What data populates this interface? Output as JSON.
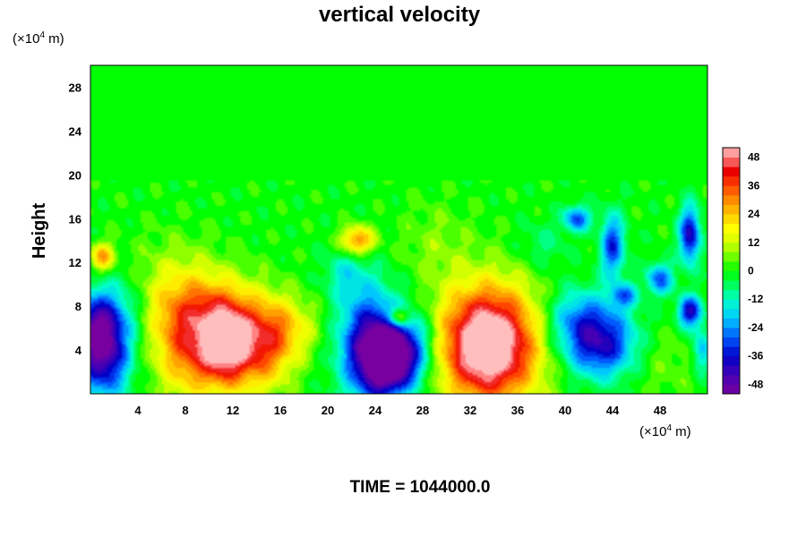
{
  "chart_data": {
    "type": "heatmap",
    "title": "vertical velocity",
    "ylabel": "Height",
    "x_unit": "(×10",
    "x_unit_exp": "4",
    "x_unit_suffix": " m)",
    "y_unit": "(×10",
    "y_unit_exp": "4",
    "y_unit_suffix": " m)",
    "xlim": [
      0,
      52
    ],
    "ylim": [
      0,
      30
    ],
    "x_ticks": [
      4,
      8,
      12,
      16,
      20,
      24,
      28,
      32,
      36,
      40,
      44,
      48
    ],
    "y_ticks": [
      4,
      8,
      12,
      16,
      20,
      24,
      28
    ],
    "colorbar": {
      "range": [
        -52,
        52
      ],
      "ticks": [
        48,
        36,
        24,
        12,
        0,
        -12,
        -24,
        -36,
        -48
      ]
    },
    "field_blobs": [
      {
        "x": 1.0,
        "y": 4.0,
        "sx": 1.6,
        "sy": 3.0,
        "v": -48
      },
      {
        "x": 0.5,
        "y": 6.5,
        "sx": 1.2,
        "sy": 2.0,
        "v": -20
      },
      {
        "x": 1.0,
        "y": 12.5,
        "sx": 0.7,
        "sy": 0.9,
        "v": 28
      },
      {
        "x": 3.0,
        "y": 8.0,
        "sx": 1.5,
        "sy": 2.5,
        "v": -10
      },
      {
        "x": 8.5,
        "y": 4.0,
        "sx": 2.2,
        "sy": 3.2,
        "v": 30
      },
      {
        "x": 11.5,
        "y": 4.5,
        "sx": 1.5,
        "sy": 2.6,
        "v": 40
      },
      {
        "x": 10.0,
        "y": 7.5,
        "sx": 3.5,
        "sy": 2.5,
        "v": 18
      },
      {
        "x": 14.5,
        "y": 4.0,
        "sx": 1.8,
        "sy": 2.8,
        "v": 28
      },
      {
        "x": 16.5,
        "y": 6.0,
        "sx": 2.0,
        "sy": 2.0,
        "v": 15
      },
      {
        "x": 7.0,
        "y": 10.0,
        "sx": 3.0,
        "sy": 3.0,
        "v": 10
      },
      {
        "x": 22.5,
        "y": 14.0,
        "sx": 1.0,
        "sy": 0.9,
        "v": 32
      },
      {
        "x": 21.5,
        "y": 11.0,
        "sx": 1.3,
        "sy": 1.6,
        "v": -12
      },
      {
        "x": 23.5,
        "y": 4.5,
        "sx": 1.8,
        "sy": 3.5,
        "v": -42
      },
      {
        "x": 25.0,
        "y": 3.0,
        "sx": 1.4,
        "sy": 2.0,
        "v": -48
      },
      {
        "x": 27.0,
        "y": 4.0,
        "sx": 1.6,
        "sy": 2.5,
        "v": -30
      },
      {
        "x": 26.0,
        "y": 7.0,
        "sx": 0.6,
        "sy": 0.6,
        "v": 30
      },
      {
        "x": 33.5,
        "y": 4.5,
        "sx": 2.6,
        "sy": 3.4,
        "v": 46
      },
      {
        "x": 33.5,
        "y": 4.5,
        "sx": 4.0,
        "sy": 4.5,
        "v": 20
      },
      {
        "x": 43.0,
        "y": 4.5,
        "sx": 2.2,
        "sy": 2.2,
        "v": -38
      },
      {
        "x": 41.0,
        "y": 7.0,
        "sx": 2.0,
        "sy": 2.0,
        "v": -20
      },
      {
        "x": 44.0,
        "y": 13.5,
        "sx": 0.7,
        "sy": 2.0,
        "v": -32
      },
      {
        "x": 41.0,
        "y": 16.0,
        "sx": 0.8,
        "sy": 0.8,
        "v": -30
      },
      {
        "x": 45.0,
        "y": 9.0,
        "sx": 0.8,
        "sy": 0.8,
        "v": -24
      },
      {
        "x": 48.0,
        "y": 10.5,
        "sx": 0.8,
        "sy": 1.0,
        "v": -28
      },
      {
        "x": 50.5,
        "y": 7.5,
        "sx": 0.7,
        "sy": 1.0,
        "v": -40
      },
      {
        "x": 50.5,
        "y": 14.5,
        "sx": 0.6,
        "sy": 1.8,
        "v": -40
      },
      {
        "x": 51.5,
        "y": 4.0,
        "sx": 0.6,
        "sy": 1.5,
        "v": -20
      },
      {
        "x": 38.0,
        "y": 13.5,
        "sx": 1.5,
        "sy": 1.5,
        "v": -8
      },
      {
        "x": 29.0,
        "y": 14.0,
        "sx": 2.0,
        "sy": 2.5,
        "v": 6
      },
      {
        "x": 48.0,
        "y": 3.0,
        "sx": 2.5,
        "sy": 2.5,
        "v": 6
      }
    ],
    "calm_above": 19.5
  },
  "time_label": "TIME = 1044000.0"
}
